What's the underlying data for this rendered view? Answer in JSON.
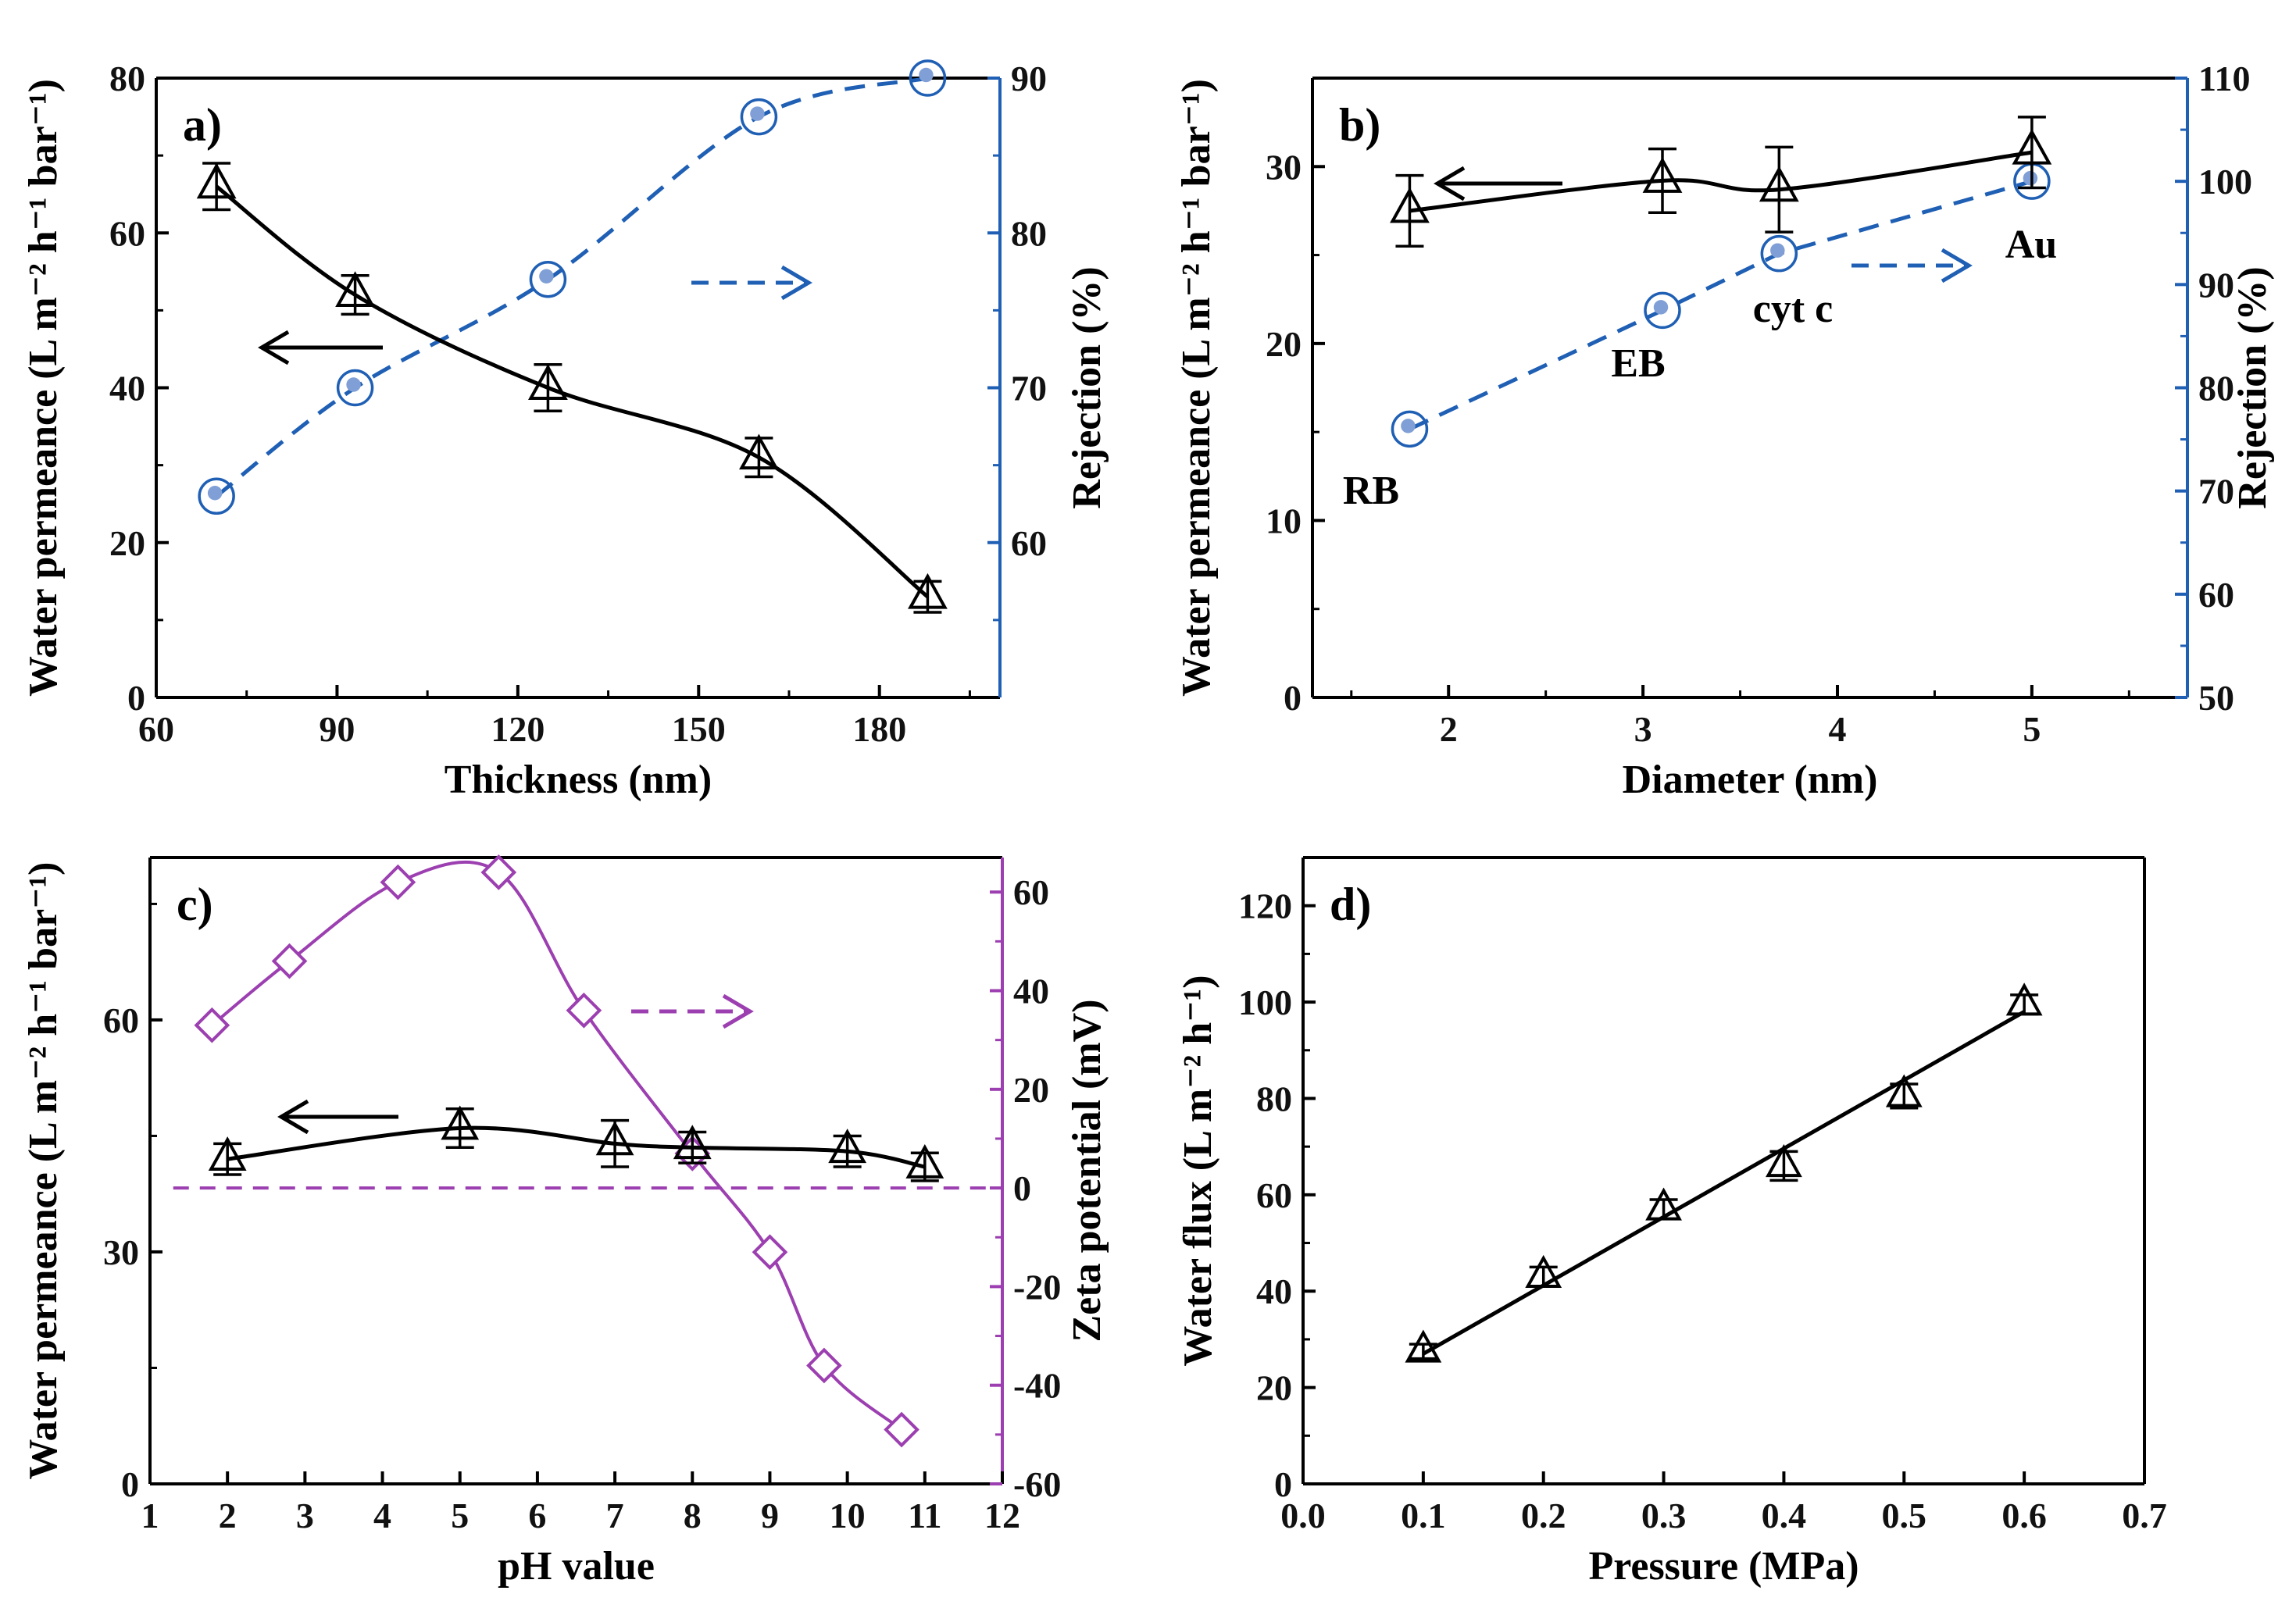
{
  "colors": {
    "black": "#000000",
    "blue": "#1f5fb4",
    "purple": "#9c3fb0",
    "marker_fill_blue": "#7f9fd6"
  },
  "chart_data": [
    {
      "panel": "a)",
      "type": "line",
      "xlabel": "Thickness (nm)",
      "ylabel_left": "Water permeance (L m⁻² h⁻¹ bar⁻¹)",
      "ylabel_right": "Rejection (%)",
      "xlim": [
        60,
        200
      ],
      "ylim_left": [
        0,
        80
      ],
      "ylim_right": [
        50,
        90
      ],
      "xticks": [
        60,
        90,
        120,
        150,
        180
      ],
      "yticks_left": [
        0,
        20,
        40,
        60,
        80
      ],
      "yticks_right": [
        60,
        70,
        80,
        90
      ],
      "series": [
        {
          "name": "Water permeance",
          "axis": "left",
          "marker": "triangle",
          "line": "solid",
          "color": "#000000",
          "x": [
            70,
            93,
            125,
            160,
            188
          ],
          "y": [
            66,
            52,
            40,
            31,
            13
          ],
          "err": [
            3,
            2.5,
            3,
            2.5,
            2
          ]
        },
        {
          "name": "Rejection",
          "axis": "right",
          "marker": "circle",
          "line": "dashed",
          "color": "#1f5fb4",
          "x": [
            70,
            93,
            125,
            160,
            188
          ],
          "y": [
            63,
            70,
            77,
            87.5,
            90
          ]
        }
      ],
      "arrows": [
        {
          "dir": "left",
          "color": "#000000"
        },
        {
          "dir": "right",
          "color": "#1f5fb4",
          "dashed": true
        }
      ]
    },
    {
      "panel": "b)",
      "type": "line",
      "xlabel": "Diameter (nm)",
      "ylabel_left": "Water permeance (L m⁻² h⁻¹ bar⁻¹)",
      "ylabel_right": "Rejection (%)",
      "xlim": [
        1.3,
        5.8
      ],
      "ylim_left": [
        0,
        35
      ],
      "ylim_right": [
        50,
        110
      ],
      "xticks": [
        2,
        3,
        4,
        5
      ],
      "yticks_left": [
        0,
        10,
        20,
        30
      ],
      "yticks_right": [
        50,
        60,
        70,
        80,
        90,
        100,
        110
      ],
      "series": [
        {
          "name": "Water permeance",
          "axis": "left",
          "marker": "triangle",
          "line": "solid",
          "color": "#000000",
          "x": [
            1.8,
            3.1,
            3.7,
            5.0
          ],
          "y": [
            27.5,
            29.2,
            28.7,
            30.8
          ],
          "err": [
            2,
            1.8,
            2.4,
            2
          ]
        },
        {
          "name": "Rejection",
          "axis": "right",
          "marker": "circle",
          "line": "dashed",
          "color": "#1f5fb4",
          "x": [
            1.8,
            3.1,
            3.7,
            5.0
          ],
          "y": [
            76,
            87.5,
            93,
            100
          ]
        }
      ],
      "annotations": [
        "RB",
        "EB",
        "cyt c",
        "Au"
      ],
      "arrows": [
        {
          "dir": "left",
          "color": "#000000"
        },
        {
          "dir": "right",
          "color": "#1f5fb4",
          "dashed": true
        }
      ]
    },
    {
      "panel": "c)",
      "type": "line",
      "xlabel": "pH value",
      "ylabel_left": "Water permeance (L m⁻² h⁻¹ bar⁻¹)",
      "ylabel_right": "Zeta potential (mV)",
      "xlim": [
        1,
        12
      ],
      "ylim_left": [
        0,
        81
      ],
      "ylim_right": [
        -60,
        67
      ],
      "xticks": [
        1,
        2,
        3,
        4,
        5,
        6,
        7,
        8,
        9,
        10,
        11,
        12
      ],
      "yticks_left": [
        0,
        30,
        60
      ],
      "yticks_right": [
        -60,
        -40,
        -20,
        0,
        20,
        40,
        60
      ],
      "series": [
        {
          "name": "Water permeance",
          "axis": "left",
          "marker": "triangle",
          "line": "solid",
          "color": "#000000",
          "x": [
            2,
            5,
            7,
            8,
            10,
            11
          ],
          "y": [
            42,
            46,
            44,
            43.5,
            43,
            41
          ],
          "err": [
            2,
            2.5,
            3,
            2,
            2,
            1.8
          ]
        },
        {
          "name": "Zeta potential",
          "axis": "right",
          "marker": "diamond",
          "line": "solid",
          "color": "#9c3fb0",
          "x": [
            1.8,
            2.8,
            4.2,
            5.5,
            6.6,
            8.0,
            9.0,
            9.7,
            10.7
          ],
          "y": [
            33,
            46,
            62,
            64,
            36,
            7,
            -13,
            -36,
            -49
          ]
        }
      ],
      "zero_line": {
        "axis": "right",
        "y": 0,
        "color": "#9c3fb0",
        "dashed": true
      },
      "arrows": [
        {
          "dir": "left",
          "color": "#000000"
        },
        {
          "dir": "right",
          "color": "#9c3fb0",
          "dashed": true
        }
      ]
    },
    {
      "panel": "d)",
      "type": "scatter",
      "xlabel": "Pressure (MPa)",
      "ylabel": "Water flux (L m⁻² h⁻¹)",
      "xlim": [
        0,
        0.7
      ],
      "ylim": [
        0,
        130
      ],
      "xticks": [
        0.0,
        0.1,
        0.2,
        0.3,
        0.4,
        0.5,
        0.6,
        0.7
      ],
      "yticks": [
        0,
        20,
        40,
        60,
        80,
        100,
        120
      ],
      "series": [
        {
          "name": "Water flux",
          "marker": "triangle",
          "color": "#000000",
          "x": [
            0.1,
            0.2,
            0.3,
            0.4,
            0.5,
            0.6
          ],
          "y": [
            27.5,
            43,
            57,
            66,
            80.5,
            99.5
          ],
          "err": [
            1.5,
            2,
            2,
            3,
            2.5,
            2
          ]
        }
      ],
      "fit": {
        "x": [
          0.1,
          0.6
        ],
        "y": [
          27,
          98
        ]
      }
    }
  ]
}
